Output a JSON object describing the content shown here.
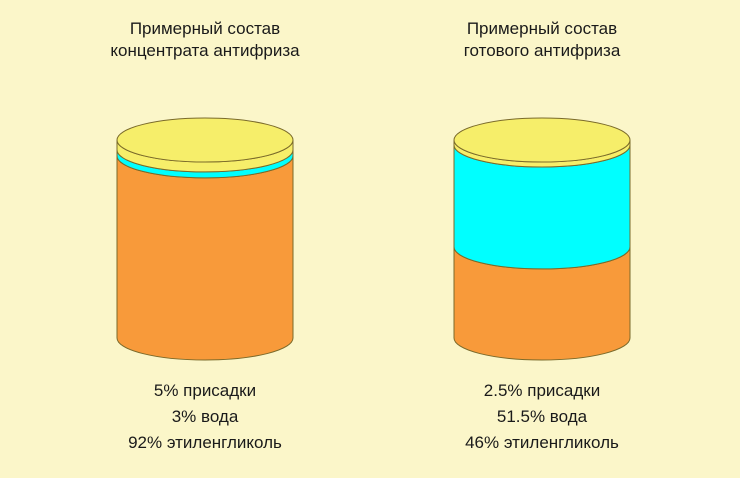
{
  "colors": {
    "background": "#fbf6c9",
    "additives": "#f6ee6a",
    "water": "#00ffff",
    "ethylene_glycol": "#f89a3a"
  },
  "panels": [
    {
      "title_line1": "Примерный состав",
      "title_line2": "концентрата антифриза",
      "composition": {
        "additives": 5,
        "water": 3,
        "ethylene_glycol": 92
      },
      "legend": [
        "5% присадки",
        "3% вода",
        "92% этиленгликоль"
      ]
    },
    {
      "title_line1": "Примерный состав",
      "title_line2": "готового антифриза",
      "composition": {
        "additives": 2.5,
        "water": 51.5,
        "ethylene_glycol": 46
      },
      "legend": [
        "2.5% присадки",
        "51.5% вода",
        "46% этиленгликоль"
      ]
    }
  ]
}
